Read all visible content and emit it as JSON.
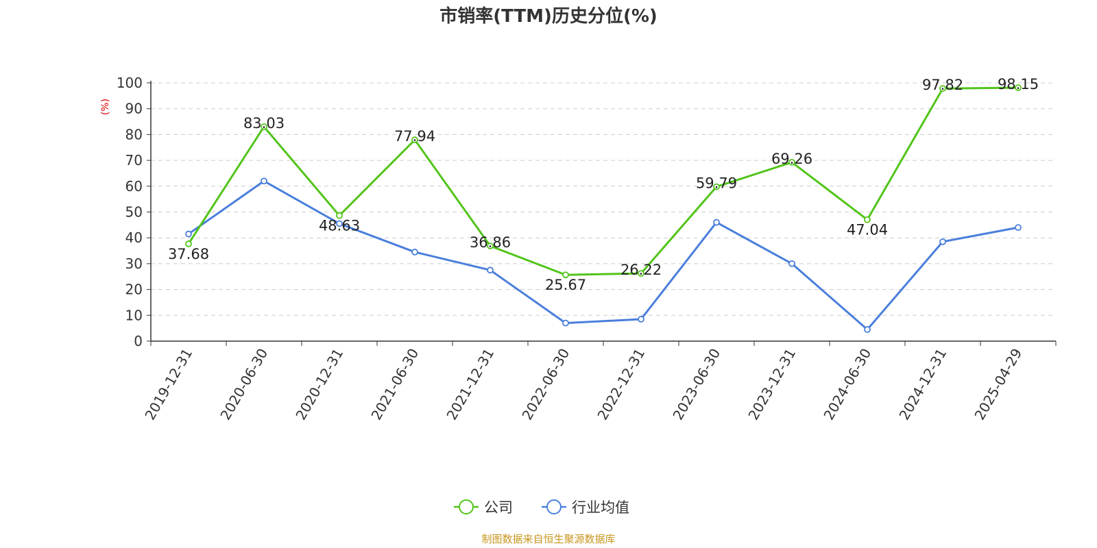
{
  "colors": {
    "company": "#52c41a",
    "industry": "#4a7fdc",
    "ylabel": "#e00000",
    "source": "#c8961e",
    "grid": "#cccccc",
    "axis": "#333333"
  },
  "source_text": "制图数据来自恒生聚源数据库",
  "chart_data": {
    "type": "line",
    "title": "市销率(TTM)历史分位(%)",
    "xlabel": "",
    "ylabel": "(%)",
    "ylim": [
      0,
      100
    ],
    "yticks": [
      0,
      10,
      20,
      30,
      40,
      50,
      60,
      70,
      80,
      90,
      100
    ],
    "grid": true,
    "legend_position": "bottom-center",
    "categories": [
      "2019-12-31",
      "2020-06-30",
      "2020-12-31",
      "2021-06-30",
      "2021-12-31",
      "2022-06-30",
      "2022-12-31",
      "2023-06-30",
      "2023-12-31",
      "2024-06-30",
      "2024-12-31",
      "2025-04-29"
    ],
    "series": [
      {
        "name": "公司",
        "color": "#52c41a",
        "values": [
          37.68,
          83.03,
          48.63,
          77.94,
          36.86,
          25.67,
          26.22,
          59.79,
          69.26,
          47.04,
          97.82,
          98.15
        ],
        "labels": [
          "37.68",
          "83.03",
          "48.63",
          "77.94",
          "36.86",
          "25.67",
          "26.22",
          "59.79",
          "69.26",
          "47.04",
          "97.82",
          "98.15"
        ]
      },
      {
        "name": "行业均值",
        "color": "#4a7fdc",
        "values": [
          41.5,
          62.0,
          45.5,
          34.5,
          27.5,
          7.0,
          8.5,
          46.0,
          30.0,
          4.5,
          38.5,
          44.0
        ]
      }
    ]
  }
}
